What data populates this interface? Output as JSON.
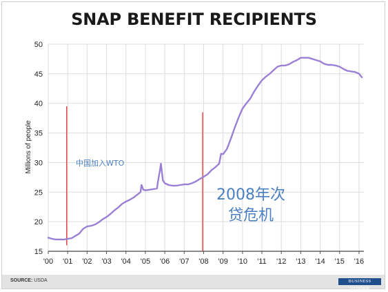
{
  "chart_data": {
    "type": "line",
    "title": "SNAP BENEFIT RECIPIENTS",
    "ylabel": "Millions of people",
    "xlabel": "",
    "ylim": [
      15,
      50
    ],
    "xlim": [
      2000,
      2016.25
    ],
    "yticks": [
      15,
      20,
      25,
      30,
      35,
      40,
      45,
      50
    ],
    "xticks": [
      {
        "value": 2000,
        "label": "'00"
      },
      {
        "value": 2001,
        "label": "'01"
      },
      {
        "value": 2002,
        "label": "'02"
      },
      {
        "value": 2003,
        "label": "'03"
      },
      {
        "value": 2004,
        "label": "'04"
      },
      {
        "value": 2005,
        "label": "'05"
      },
      {
        "value": 2006,
        "label": "'06"
      },
      {
        "value": 2007,
        "label": "'07"
      },
      {
        "value": 2008,
        "label": "'08"
      },
      {
        "value": 2009,
        "label": "'09"
      },
      {
        "value": 2010,
        "label": "'10"
      },
      {
        "value": 2011,
        "label": "'11"
      },
      {
        "value": 2012,
        "label": "'12"
      },
      {
        "value": 2013,
        "label": "'13"
      },
      {
        "value": 2014,
        "label": "'14"
      },
      {
        "value": 2015,
        "label": "'15"
      },
      {
        "value": 2016,
        "label": "'16"
      }
    ],
    "grid": true,
    "series": [
      {
        "color": "#9b7fd4",
        "x": [
          2000.0,
          2000.2,
          2000.4,
          2000.6,
          2000.8,
          2001.0,
          2001.2,
          2001.4,
          2001.6,
          2001.8,
          2002.0,
          2002.2,
          2002.4,
          2002.6,
          2002.8,
          2003.0,
          2003.2,
          2003.4,
          2003.6,
          2003.8,
          2004.0,
          2004.2,
          2004.4,
          2004.6,
          2004.75,
          2004.8,
          2004.9,
          2005.0,
          2005.2,
          2005.4,
          2005.6,
          2005.65,
          2005.75,
          2005.8,
          2005.9,
          2006.0,
          2006.2,
          2006.4,
          2006.6,
          2006.8,
          2007.0,
          2007.2,
          2007.4,
          2007.6,
          2007.8,
          2008.0,
          2008.2,
          2008.4,
          2008.6,
          2008.8,
          2008.9,
          2009.0,
          2009.2,
          2009.4,
          2009.6,
          2009.8,
          2010.0,
          2010.2,
          2010.4,
          2010.6,
          2010.8,
          2011.0,
          2011.2,
          2011.4,
          2011.6,
          2011.8,
          2012.0,
          2012.2,
          2012.4,
          2012.6,
          2012.8,
          2013.0,
          2013.2,
          2013.4,
          2013.6,
          2013.8,
          2014.0,
          2014.2,
          2014.4,
          2014.6,
          2014.8,
          2015.0,
          2015.2,
          2015.4,
          2015.6,
          2015.8,
          2016.0,
          2016.15
        ],
        "y": [
          17.3,
          17.1,
          17.0,
          17.0,
          17.0,
          17.1,
          17.2,
          17.6,
          18.0,
          18.8,
          19.2,
          19.3,
          19.5,
          19.9,
          20.4,
          20.8,
          21.3,
          21.9,
          22.4,
          23.0,
          23.4,
          23.7,
          24.1,
          24.6,
          25.0,
          26.2,
          25.4,
          25.3,
          25.4,
          25.5,
          25.6,
          26.8,
          28.7,
          29.8,
          27.0,
          26.5,
          26.2,
          26.1,
          26.1,
          26.2,
          26.3,
          26.3,
          26.5,
          26.8,
          27.2,
          27.6,
          28.0,
          28.7,
          29.2,
          29.8,
          31.5,
          31.4,
          32.3,
          34.0,
          35.9,
          37.6,
          39.1,
          40.0,
          40.8,
          42.0,
          43.0,
          43.9,
          44.5,
          45.0,
          45.6,
          46.2,
          46.4,
          46.4,
          46.6,
          47.0,
          47.3,
          47.7,
          47.7,
          47.7,
          47.5,
          47.3,
          47.1,
          46.7,
          46.5,
          46.5,
          46.4,
          46.2,
          45.8,
          45.5,
          45.4,
          45.3,
          45.0,
          44.4
        ]
      }
    ],
    "markers": [
      {
        "x": 2000.95,
        "y_top": 39.5,
        "y_bottom": 16.0,
        "color": "#e02020"
      },
      {
        "x": 2007.95,
        "y_top": 38.5,
        "y_bottom": 15.0,
        "color": "#e02020"
      }
    ],
    "annotations": [
      {
        "text": "中国加入WTO",
        "color": "#4a7fc0",
        "size": 11
      },
      {
        "text": "2008年次",
        "color": "#4a7fc0",
        "size": 22
      },
      {
        "text": "贷危机",
        "color": "#4a7fc0",
        "size": 22
      }
    ]
  },
  "footer": {
    "source_label": "SOURCE:",
    "source_value": "USDA",
    "brand": "BUSINESS INSIDER"
  }
}
